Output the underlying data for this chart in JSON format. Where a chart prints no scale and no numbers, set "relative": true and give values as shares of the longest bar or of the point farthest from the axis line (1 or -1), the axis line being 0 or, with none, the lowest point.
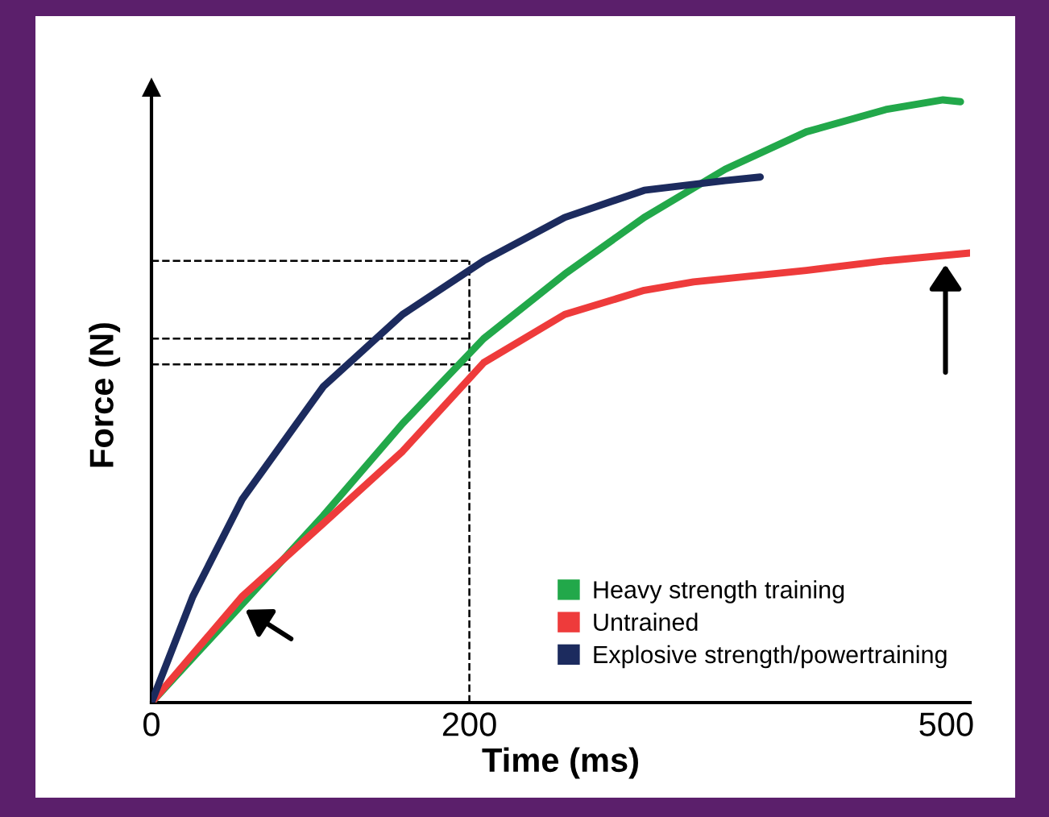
{
  "chart_data": {
    "type": "line",
    "relative": true,
    "xlabel": "Time (ms)",
    "ylabel": "Force (N)",
    "xlim": [
      0,
      515
    ],
    "xticks": [
      0,
      200,
      500
    ],
    "grid": false,
    "legend": "bottom right",
    "marker": "none",
    "line_style": "solid",
    "series": [
      {
        "name": "Heavy strength training",
        "color": "#22a84a",
        "x": [
          0,
          57,
          108,
          158,
          209,
          260,
          310,
          361,
          412,
          462,
          498,
          509
        ],
        "values": [
          0,
          0.163,
          0.31,
          0.463,
          0.604,
          0.711,
          0.805,
          0.885,
          0.947,
          0.984,
          1.0,
          0.997
        ]
      },
      {
        "name": "Untrained",
        "color": "#ee3b3b",
        "x": [
          0,
          57,
          108,
          158,
          209,
          260,
          310,
          341,
          412,
          462,
          515
        ],
        "values": [
          0,
          0.176,
          0.297,
          0.417,
          0.564,
          0.644,
          0.684,
          0.698,
          0.717,
          0.733,
          0.746
        ]
      },
      {
        "name": "Explosive strength/powertraining",
        "color": "#1c2b5e",
        "x": [
          0,
          26,
          57,
          108,
          158,
          209,
          260,
          310,
          361,
          383
        ],
        "values": [
          0,
          0.176,
          0.337,
          0.524,
          0.644,
          0.733,
          0.805,
          0.85,
          0.866,
          0.872
        ]
      }
    ],
    "ref_lines": [
      {
        "axis": "x",
        "value": 200,
        "line_style": "dashed",
        "color": "#000000"
      },
      {
        "axis": "y",
        "value": 0.733,
        "line_style": "dashed",
        "color": "#000000"
      },
      {
        "axis": "y",
        "value": 0.604,
        "line_style": "dashed",
        "color": "#000000"
      },
      {
        "axis": "y",
        "value": 0.561,
        "line_style": "dashed",
        "color": "#000000"
      }
    ]
  }
}
